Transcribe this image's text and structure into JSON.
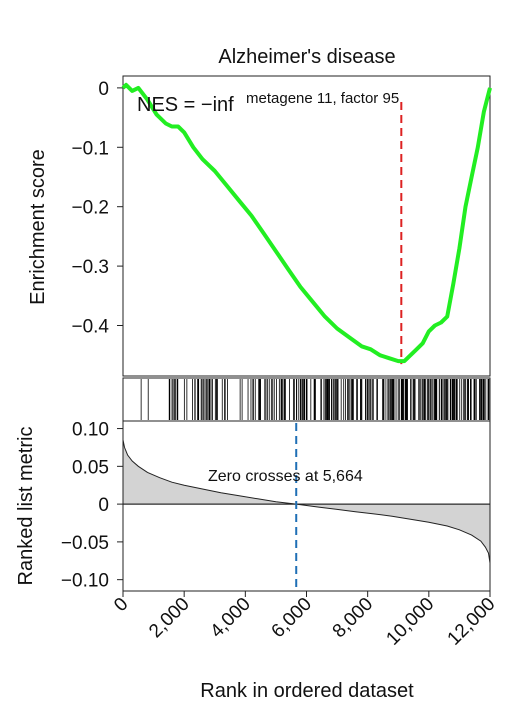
{
  "chart_data": {
    "type": "line",
    "title": "Alzheimer's disease",
    "annotations": {
      "nes": "NES = −inf",
      "gene_set": "metagene 11, factor 95",
      "zero_cross": "Zero crosses at 5,664"
    },
    "xlabel": "Rank in ordered dataset",
    "xlim": [
      0,
      12000
    ],
    "x_ticks": [
      0,
      2000,
      4000,
      6000,
      8000,
      10000,
      12000
    ],
    "x_tick_labels": [
      "0",
      "2,000",
      "4,000",
      "6,000",
      "8,000",
      "10,000",
      "12,000"
    ],
    "panels": {
      "enrichment": {
        "ylabel": "Enrichment score",
        "ylim": [
          -0.485,
          0.02
        ],
        "y_ticks": [
          0,
          -0.1,
          -0.2,
          -0.3,
          -0.4
        ],
        "y_tick_labels": [
          "0",
          "−0.1",
          "−0.2",
          "−0.3",
          "−0.4"
        ],
        "line_color": "#22ee22",
        "peak_line_color": "#dd2222",
        "peak_rank": 9100,
        "peak_score": -0.465,
        "x": [
          0,
          100,
          300,
          500,
          800,
          1100,
          1400,
          1600,
          1800,
          2000,
          2300,
          2600,
          3000,
          3400,
          3800,
          4200,
          4600,
          5000,
          5400,
          5800,
          6200,
          6600,
          7000,
          7400,
          7800,
          8100,
          8400,
          8700,
          9000,
          9200,
          9400,
          9600,
          9800,
          10000,
          10200,
          10400,
          10600,
          10800,
          11000,
          11200,
          11400,
          11600,
          11800,
          12000
        ],
        "y": [
          0.0,
          0.005,
          -0.005,
          0.0,
          -0.02,
          -0.045,
          -0.06,
          -0.065,
          -0.065,
          -0.075,
          -0.1,
          -0.12,
          -0.14,
          -0.165,
          -0.19,
          -0.215,
          -0.245,
          -0.275,
          -0.305,
          -0.335,
          -0.36,
          -0.385,
          -0.405,
          -0.42,
          -0.435,
          -0.44,
          -0.45,
          -0.455,
          -0.46,
          -0.46,
          -0.45,
          -0.44,
          -0.43,
          -0.41,
          -0.4,
          -0.395,
          -0.385,
          -0.33,
          -0.27,
          -0.2,
          -0.15,
          -0.1,
          -0.04,
          0.0
        ]
      },
      "hits": {
        "description_ticks": "gene hit barcode"
      },
      "ranked_metric": {
        "ylabel": "Ranked list metric",
        "ylim": [
          -0.115,
          0.11
        ],
        "y_ticks": [
          0.1,
          0.05,
          0,
          -0.05,
          -0.1
        ],
        "y_tick_labels": [
          "0.10",
          "0.05",
          "0",
          "−0.05",
          "−0.10"
        ],
        "fill_color": "#d3d3d3",
        "zero_line_color": "#1f6fb5",
        "zero_cross": 5664,
        "x": [
          0,
          50,
          150,
          300,
          500,
          800,
          1200,
          1600,
          2000,
          2600,
          3200,
          3800,
          4400,
          5000,
          5664,
          6400,
          7000,
          7600,
          8200,
          8800,
          9400,
          10000,
          10600,
          11000,
          11400,
          11700,
          11850,
          11950,
          12000
        ],
        "y": [
          0.085,
          0.075,
          0.065,
          0.057,
          0.05,
          0.042,
          0.035,
          0.029,
          0.025,
          0.02,
          0.015,
          0.011,
          0.007,
          0.003,
          0.0,
          -0.004,
          -0.007,
          -0.01,
          -0.013,
          -0.016,
          -0.02,
          -0.024,
          -0.029,
          -0.034,
          -0.041,
          -0.049,
          -0.057,
          -0.065,
          -0.078
        ]
      }
    }
  }
}
